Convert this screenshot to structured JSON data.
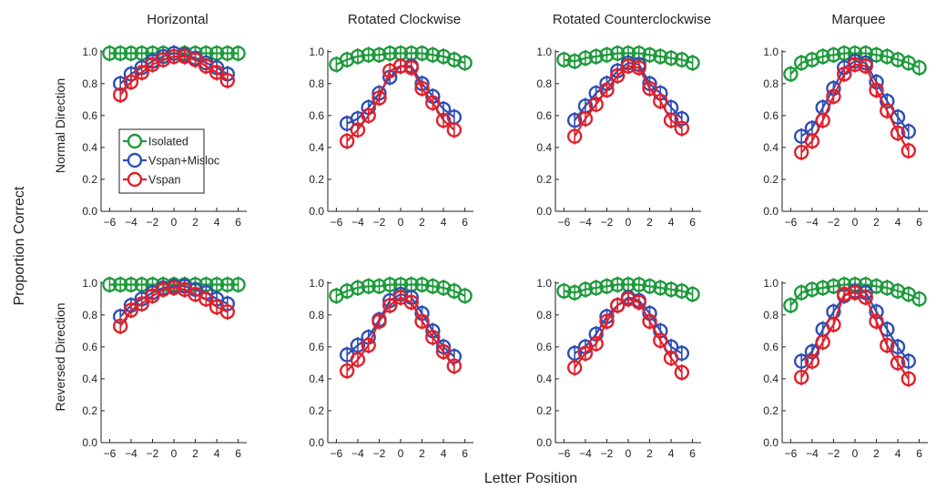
{
  "figure": {
    "xlabel": "Letter Position",
    "ylabel": "Proportion Correct",
    "row_labels": [
      "Normal Direction",
      "Reversed Direction"
    ],
    "column_titles": [
      "Horizontal",
      "Rotated Clockwise",
      "Rotated Counterclockwise",
      "Marquee"
    ],
    "legend": [
      "Isolated",
      "Vspan+Misloc",
      "Vspan"
    ],
    "colors": {
      "Isolated": "#1e9a3c",
      "Vspan+Misloc": "#2e4fb4",
      "Vspan": "#e0202a"
    },
    "x_ticks": [
      "−6",
      "−4",
      "−2",
      "0",
      "2",
      "4",
      "6"
    ],
    "y_ticks": [
      "0.0",
      "0.2",
      "0.4",
      "0.6",
      "0.8",
      "1.0"
    ]
  },
  "chart_data": [
    {
      "type": "line",
      "title": "Horizontal",
      "row": "Normal Direction",
      "xlabel": "Letter Position",
      "ylabel": "Proportion Correct",
      "xlim": [
        -6.8,
        6.8
      ],
      "ylim": [
        0,
        1.05
      ],
      "grid": false,
      "legend_placement": "center-left",
      "x": [
        -6,
        -5,
        -4,
        -3,
        -2,
        -1,
        0,
        1,
        2,
        3,
        4,
        5,
        6
      ],
      "series": [
        {
          "name": "Isolated",
          "x": [
            -6,
            -5,
            -4,
            -3,
            -2,
            -1,
            0,
            1,
            2,
            3,
            4,
            5,
            6
          ],
          "values": [
            0.99,
            0.99,
            0.99,
            0.99,
            0.99,
            0.99,
            0.99,
            0.99,
            0.99,
            0.99,
            0.99,
            0.99,
            0.99
          ]
        },
        {
          "name": "Vspan+Misloc",
          "x": [
            -5,
            -4,
            -3,
            -2,
            -1,
            0,
            1,
            2,
            3,
            4,
            5
          ],
          "values": [
            0.8,
            0.86,
            0.9,
            0.94,
            0.97,
            0.99,
            0.98,
            0.96,
            0.93,
            0.9,
            0.86
          ]
        },
        {
          "name": "Vspan",
          "x": [
            -5,
            -4,
            -3,
            -2,
            -1,
            0,
            1,
            2,
            3,
            4,
            5
          ],
          "values": [
            0.73,
            0.81,
            0.87,
            0.92,
            0.95,
            0.97,
            0.97,
            0.95,
            0.91,
            0.87,
            0.82
          ]
        }
      ]
    },
    {
      "type": "line",
      "title": "Rotated Clockwise",
      "row": "Normal Direction",
      "xlim": [
        -6.8,
        6.8
      ],
      "ylim": [
        0,
        1.05
      ],
      "series": [
        {
          "name": "Isolated",
          "x": [
            -6,
            -5,
            -4,
            -3,
            -2,
            -1,
            0,
            1,
            2,
            3,
            4,
            5,
            6
          ],
          "values": [
            0.92,
            0.95,
            0.97,
            0.98,
            0.98,
            0.99,
            0.99,
            0.99,
            0.99,
            0.98,
            0.97,
            0.95,
            0.93
          ]
        },
        {
          "name": "Vspan+Misloc",
          "x": [
            -5,
            -4,
            -3,
            -2,
            -1,
            0,
            1,
            2,
            3,
            4,
            5
          ],
          "values": [
            0.55,
            0.58,
            0.65,
            0.74,
            0.84,
            0.91,
            0.91,
            0.8,
            0.72,
            0.64,
            0.59
          ]
        },
        {
          "name": "Vspan",
          "x": [
            -5,
            -4,
            -3,
            -2,
            -1,
            0,
            1,
            2,
            3,
            4,
            5
          ],
          "values": [
            0.44,
            0.51,
            0.6,
            0.71,
            0.88,
            0.91,
            0.9,
            0.77,
            0.68,
            0.57,
            0.51
          ]
        }
      ]
    },
    {
      "type": "line",
      "title": "Rotated Counterclockwise",
      "row": "Normal Direction",
      "xlim": [
        -6.8,
        6.8
      ],
      "ylim": [
        0,
        1.05
      ],
      "series": [
        {
          "name": "Isolated",
          "x": [
            -6,
            -5,
            -4,
            -3,
            -2,
            -1,
            0,
            1,
            2,
            3,
            4,
            5,
            6
          ],
          "values": [
            0.95,
            0.94,
            0.96,
            0.97,
            0.98,
            0.99,
            0.99,
            0.99,
            0.98,
            0.97,
            0.96,
            0.95,
            0.93
          ]
        },
        {
          "name": "Vspan+Misloc",
          "x": [
            -5,
            -4,
            -3,
            -2,
            -1,
            0,
            1,
            2,
            3,
            4,
            5
          ],
          "values": [
            0.57,
            0.66,
            0.74,
            0.8,
            0.88,
            0.93,
            0.92,
            0.8,
            0.74,
            0.65,
            0.58
          ]
        },
        {
          "name": "Vspan",
          "x": [
            -5,
            -4,
            -3,
            -2,
            -1,
            0,
            1,
            2,
            3,
            4,
            5
          ],
          "values": [
            0.47,
            0.58,
            0.67,
            0.76,
            0.85,
            0.91,
            0.9,
            0.77,
            0.69,
            0.57,
            0.52
          ]
        }
      ]
    },
    {
      "type": "line",
      "title": "Marquee",
      "row": "Normal Direction",
      "xlim": [
        -6.8,
        6.8
      ],
      "ylim": [
        0,
        1.05
      ],
      "series": [
        {
          "name": "Isolated",
          "x": [
            -6,
            -5,
            -4,
            -3,
            -2,
            -1,
            0,
            1,
            2,
            3,
            4,
            5,
            6
          ],
          "values": [
            0.86,
            0.93,
            0.95,
            0.97,
            0.98,
            0.99,
            0.99,
            0.99,
            0.98,
            0.97,
            0.95,
            0.93,
            0.9
          ]
        },
        {
          "name": "Vspan+Misloc",
          "x": [
            -5,
            -4,
            -3,
            -2,
            -1,
            0,
            1,
            2,
            3,
            4,
            5
          ],
          "values": [
            0.47,
            0.52,
            0.65,
            0.77,
            0.9,
            0.94,
            0.93,
            0.81,
            0.69,
            0.59,
            0.5
          ]
        },
        {
          "name": "Vspan",
          "x": [
            -5,
            -4,
            -3,
            -2,
            -1,
            0,
            1,
            2,
            3,
            4,
            5
          ],
          "values": [
            0.37,
            0.44,
            0.57,
            0.72,
            0.86,
            0.92,
            0.91,
            0.76,
            0.63,
            0.49,
            0.38
          ]
        }
      ]
    },
    {
      "type": "line",
      "title": "Horizontal",
      "row": "Reversed Direction",
      "xlim": [
        -6.8,
        6.8
      ],
      "ylim": [
        0,
        1.05
      ],
      "series": [
        {
          "name": "Isolated",
          "x": [
            -6,
            -5,
            -4,
            -3,
            -2,
            -1,
            0,
            1,
            2,
            3,
            4,
            5,
            6
          ],
          "values": [
            0.99,
            0.99,
            0.99,
            0.99,
            0.99,
            0.99,
            0.99,
            0.99,
            0.99,
            0.99,
            0.99,
            0.99,
            0.99
          ]
        },
        {
          "name": "Vspan+Misloc",
          "x": [
            -5,
            -4,
            -3,
            -2,
            -1,
            0,
            1,
            2,
            3,
            4,
            5
          ],
          "values": [
            0.79,
            0.86,
            0.9,
            0.94,
            0.97,
            0.98,
            0.98,
            0.96,
            0.94,
            0.9,
            0.87
          ]
        },
        {
          "name": "Vspan",
          "x": [
            -5,
            -4,
            -3,
            -2,
            -1,
            0,
            1,
            2,
            3,
            4,
            5
          ],
          "values": [
            0.73,
            0.83,
            0.87,
            0.92,
            0.96,
            0.97,
            0.96,
            0.93,
            0.9,
            0.85,
            0.82
          ]
        }
      ]
    },
    {
      "type": "line",
      "title": "Rotated Clockwise",
      "row": "Reversed Direction",
      "xlim": [
        -6.8,
        6.8
      ],
      "ylim": [
        0,
        1.05
      ],
      "series": [
        {
          "name": "Isolated",
          "x": [
            -6,
            -5,
            -4,
            -3,
            -2,
            -1,
            0,
            1,
            2,
            3,
            4,
            5,
            6
          ],
          "values": [
            0.92,
            0.95,
            0.97,
            0.98,
            0.98,
            0.99,
            0.99,
            0.99,
            0.99,
            0.98,
            0.97,
            0.95,
            0.92
          ]
        },
        {
          "name": "Vspan+Misloc",
          "x": [
            -5,
            -4,
            -3,
            -2,
            -1,
            0,
            1,
            2,
            3,
            4,
            5
          ],
          "values": [
            0.55,
            0.61,
            0.66,
            0.77,
            0.89,
            0.93,
            0.91,
            0.81,
            0.7,
            0.6,
            0.54
          ]
        },
        {
          "name": "Vspan",
          "x": [
            -5,
            -4,
            -3,
            -2,
            -1,
            0,
            1,
            2,
            3,
            4,
            5
          ],
          "values": [
            0.45,
            0.52,
            0.61,
            0.76,
            0.86,
            0.91,
            0.88,
            0.76,
            0.66,
            0.57,
            0.48
          ]
        }
      ]
    },
    {
      "type": "line",
      "title": "Rotated Counterclockwise",
      "row": "Reversed Direction",
      "xlim": [
        -6.8,
        6.8
      ],
      "ylim": [
        0,
        1.05
      ],
      "series": [
        {
          "name": "Isolated",
          "x": [
            -6,
            -5,
            -4,
            -3,
            -2,
            -1,
            0,
            1,
            2,
            3,
            4,
            5,
            6
          ],
          "values": [
            0.95,
            0.94,
            0.96,
            0.97,
            0.98,
            0.99,
            0.99,
            0.99,
            0.98,
            0.97,
            0.96,
            0.95,
            0.93
          ]
        },
        {
          "name": "Vspan+Misloc",
          "x": [
            -5,
            -4,
            -3,
            -2,
            -1,
            0,
            1,
            2,
            3,
            4,
            5
          ],
          "values": [
            0.56,
            0.6,
            0.68,
            0.79,
            0.86,
            0.91,
            0.89,
            0.81,
            0.7,
            0.6,
            0.56
          ]
        },
        {
          "name": "Vspan",
          "x": [
            -5,
            -4,
            -3,
            -2,
            -1,
            0,
            1,
            2,
            3,
            4,
            5
          ],
          "values": [
            0.47,
            0.56,
            0.62,
            0.76,
            0.86,
            0.9,
            0.88,
            0.76,
            0.64,
            0.53,
            0.44
          ]
        }
      ]
    },
    {
      "type": "line",
      "title": "Marquee",
      "row": "Reversed Direction",
      "xlim": [
        -6.8,
        6.8
      ],
      "ylim": [
        0,
        1.05
      ],
      "series": [
        {
          "name": "Isolated",
          "x": [
            -6,
            -5,
            -4,
            -3,
            -2,
            -1,
            0,
            1,
            2,
            3,
            4,
            5,
            6
          ],
          "values": [
            0.86,
            0.94,
            0.96,
            0.97,
            0.98,
            0.99,
            0.99,
            0.99,
            0.98,
            0.97,
            0.95,
            0.93,
            0.9
          ]
        },
        {
          "name": "Vspan+Misloc",
          "x": [
            -5,
            -4,
            -3,
            -2,
            -1,
            0,
            1,
            2,
            3,
            4,
            5
          ],
          "values": [
            0.51,
            0.57,
            0.71,
            0.82,
            0.92,
            0.95,
            0.94,
            0.82,
            0.71,
            0.6,
            0.51
          ]
        },
        {
          "name": "Vspan",
          "x": [
            -5,
            -4,
            -3,
            -2,
            -1,
            0,
            1,
            2,
            3,
            4,
            5
          ],
          "values": [
            0.41,
            0.51,
            0.63,
            0.74,
            0.93,
            0.94,
            0.91,
            0.76,
            0.61,
            0.5,
            0.4
          ]
        }
      ]
    }
  ]
}
